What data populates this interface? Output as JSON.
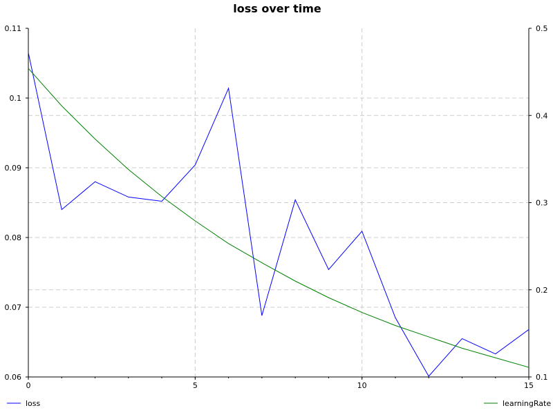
{
  "chart_data": {
    "type": "line",
    "title": "loss over time",
    "xlabel": "",
    "ylabel": "",
    "x": [
      0,
      1,
      2,
      3,
      4,
      5,
      6,
      7,
      8,
      9,
      10,
      11,
      12,
      13,
      14,
      15
    ],
    "xlim": [
      0,
      15
    ],
    "x_ticks": [
      "0",
      "5",
      "10",
      "15"
    ],
    "ylim_left": [
      0.06,
      0.11
    ],
    "y_ticks_left": [
      "0.06",
      "0.07",
      "0.08",
      "0.09",
      "0.1",
      "0.11"
    ],
    "ylim_right": [
      0.1,
      0.5
    ],
    "y_ticks_right": [
      "0.1",
      "0.2",
      "0.3",
      "0.4",
      "0.5"
    ],
    "grid": true,
    "legend_placement": "bottom",
    "series": [
      {
        "name": "loss",
        "axis": "left",
        "color": "#0000ff",
        "values": [
          0.1065,
          0.084,
          0.088,
          0.0858,
          0.0852,
          0.0904,
          0.1014,
          0.0688,
          0.0854,
          0.0754,
          0.0809,
          0.0685,
          0.0601,
          0.0655,
          0.0633,
          0.0668
        ]
      },
      {
        "name": "learningRate",
        "axis": "right",
        "color": "#008000",
        "values": [
          0.454,
          0.411,
          0.373,
          0.338,
          0.307,
          0.279,
          0.253,
          0.231,
          0.21,
          0.191,
          0.174,
          0.159,
          0.146,
          0.133,
          0.122,
          0.111
        ]
      }
    ]
  }
}
